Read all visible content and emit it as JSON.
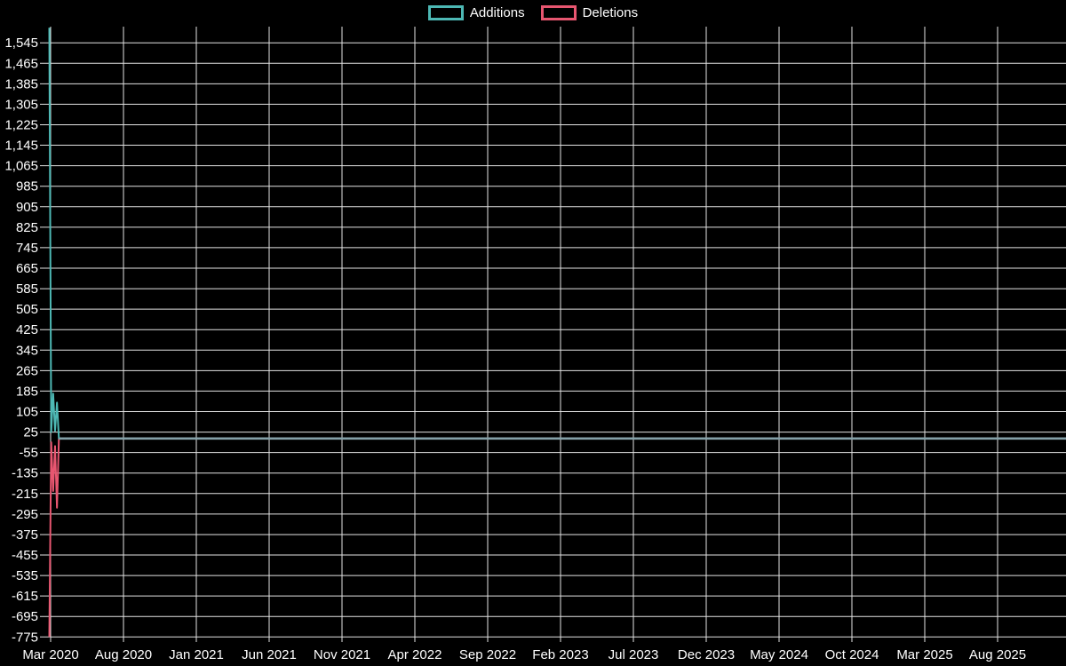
{
  "chart_data": {
    "type": "line",
    "title": "",
    "background_color": "#000000",
    "grid_color": "#e3e3e3",
    "text_color": "#ffffff",
    "grid": true,
    "legend_position": "top-center",
    "legend": [
      {
        "label": "Additions",
        "color": "#4db8b4"
      },
      {
        "label": "Deletions",
        "color": "#e75670"
      }
    ],
    "axis": {
      "y_min": -775,
      "y_max": 1545,
      "y_step": 80,
      "x_start": "Mar 2020",
      "x_end": "Aug 2025"
    },
    "y_ticks": [
      "1,545",
      "1,465",
      "1,385",
      "1,305",
      "1,225",
      "1,145",
      "1,065",
      "985",
      "905",
      "825",
      "745",
      "665",
      "585",
      "505",
      "425",
      "345",
      "265",
      "185",
      "105",
      "25",
      "-55",
      "-135",
      "-215",
      "-295",
      "-375",
      "-455",
      "-535",
      "-615",
      "-695",
      "-775"
    ],
    "x_ticks": [
      "Mar 2020",
      "Aug 2020",
      "Jan 2021",
      "Jun 2021",
      "Nov 2021",
      "Apr 2022",
      "Sep 2022",
      "Feb 2023",
      "Jul 2023",
      "Dec 2023",
      "May 2024",
      "Oct 2024",
      "Mar 2025",
      "Aug 2025"
    ],
    "series": [
      {
        "name": "Deletions",
        "color": "#e75670",
        "day_offsets": [
          0,
          4,
          8,
          12,
          16,
          20
        ],
        "values": [
          -775,
          -15,
          -205,
          -30,
          -270,
          0
        ],
        "flat_to_right_edge": true
      },
      {
        "name": "Additions",
        "color": "#4db8b4",
        "day_offsets": [
          0,
          4,
          8,
          12,
          16,
          20
        ],
        "values": [
          1604,
          25,
          175,
          30,
          140,
          0
        ],
        "flat_to_right_edge": true
      }
    ],
    "zero_overlap_line_color": "#84a0a8"
  }
}
